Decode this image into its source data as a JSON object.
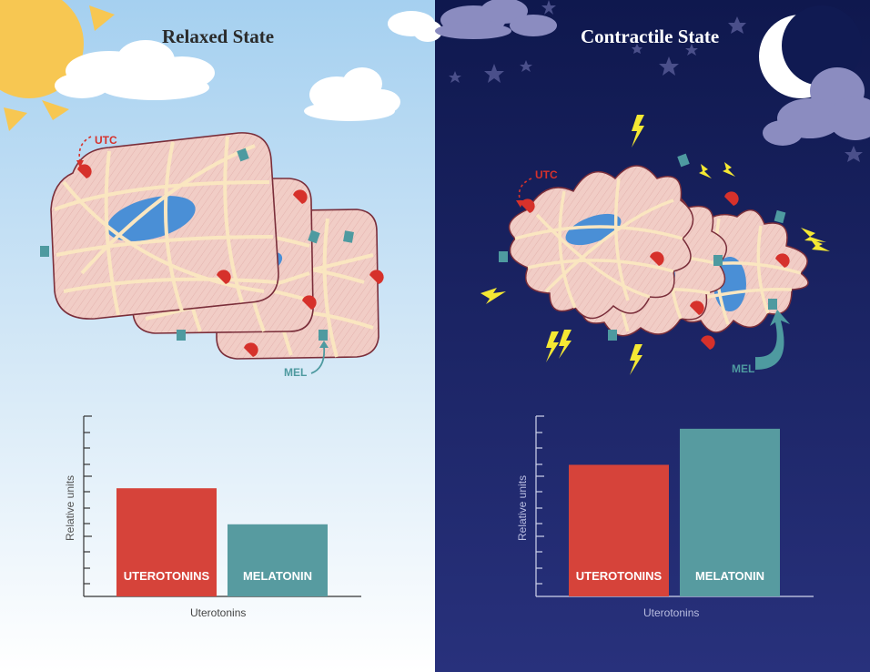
{
  "left": {
    "title": "Relaxed State",
    "utc_label": "UTC",
    "mel_label": "MEL"
  },
  "right": {
    "title": "Contractile State",
    "utc_label": "UTC",
    "mel_label": "MEL"
  },
  "colors": {
    "day_sky_top": "#a9d3f2",
    "day_sky_bottom": "#ffffff",
    "night_sky_top": "#101a52",
    "night_sky_bottom": "#26307a",
    "cell_fill": "#f1cdc6",
    "fiber": "#fae6c0",
    "nucleus": "#4a8fd6",
    "receptor_utc": "#d6312b",
    "receptor_mel": "#4e9aa0",
    "uterotonins_bar": "#d6433a",
    "melatonin_bar": "#579ba0",
    "lightning": "#f4e833",
    "sun": "#f7c752",
    "moon": "#ffffff"
  },
  "chart_data": [
    {
      "type": "bar",
      "title": "",
      "xlabel": "Uterotonins",
      "ylabel": "Relative units",
      "categories": [
        "UTEROTONINS",
        "MELATONIN"
      ],
      "values": [
        6,
        4
      ]
    },
    {
      "type": "bar",
      "title": "",
      "xlabel": "Uterotonins",
      "ylabel": "Relative units",
      "categories": [
        "UTEROTONINS",
        "MELATONIN"
      ],
      "values": [
        7.3,
        9.3
      ]
    }
  ]
}
